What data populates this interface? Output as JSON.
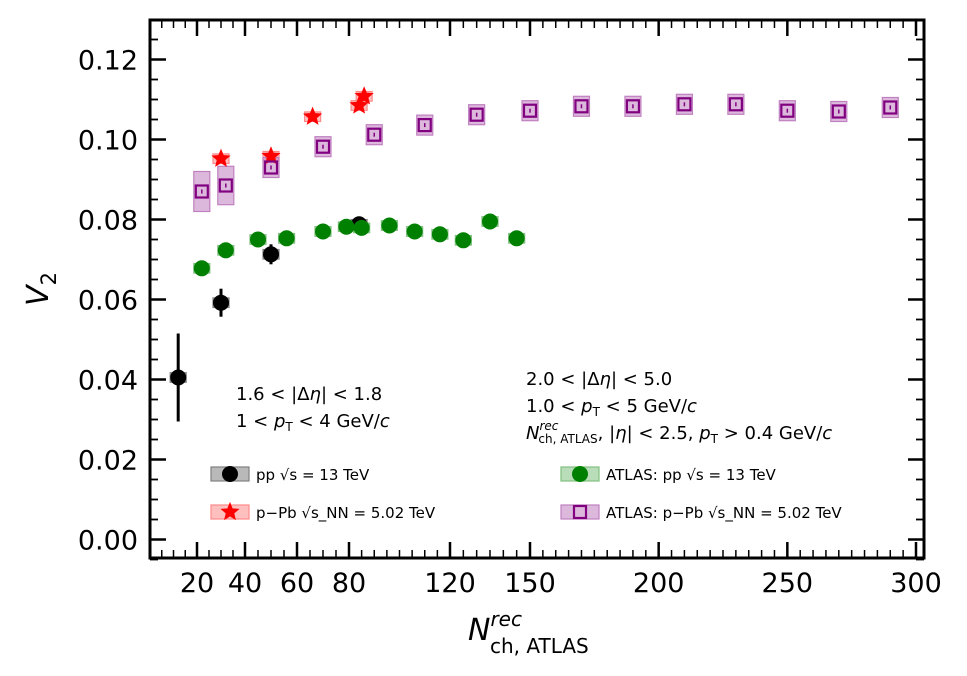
{
  "chart_data": {
    "type": "scatter",
    "xlabel": "N^rec_ch,ATLAS",
    "ylabel": "V_2",
    "xlim": [
      0,
      305
    ],
    "ylim": [
      -0.005,
      0.13
    ],
    "x_scale": "piecewise-compressed below 150",
    "x_ticks": [
      {
        "value": 20,
        "label": "20"
      },
      {
        "value": 40,
        "label": "40"
      },
      {
        "value": 60,
        "label": "60"
      },
      {
        "value": 80,
        "label": "80"
      },
      {
        "value": 120,
        "label": "120"
      },
      {
        "value": 150,
        "label": "150"
      },
      {
        "value": 200,
        "label": "200"
      },
      {
        "value": 250,
        "label": "250"
      },
      {
        "value": 300,
        "label": "300"
      }
    ],
    "y_ticks": [
      {
        "value": 0.0,
        "label": "0.00"
      },
      {
        "value": 0.02,
        "label": "0.02"
      },
      {
        "value": 0.04,
        "label": "0.04"
      },
      {
        "value": 0.06,
        "label": "0.06"
      },
      {
        "value": 0.08,
        "label": "0.08"
      },
      {
        "value": 0.1,
        "label": "0.10"
      },
      {
        "value": 0.12,
        "label": "0.12"
      }
    ],
    "annotations": {
      "left": [
        "1.6 < |Δη| < 1.8",
        "1 < p_T < 4 GeV/c"
      ],
      "right": [
        "2.0 < |Δη| < 5.0",
        "1.0 < p_T < 5 GeV/c",
        "N^rec_ch,ATLAS, |η| < 2.5, p_T > 0.4 GeV/c"
      ]
    },
    "legend_position": "lower center",
    "series": [
      {
        "name": "pp √s = 13 TeV",
        "marker": "filled-circle",
        "color": "#000000",
        "box_color": "#808080",
        "points": [
          {
            "x": 12,
            "y": 0.0405,
            "err": 0.011
          },
          {
            "x": 30,
            "y": 0.0592,
            "err": 0.0035
          },
          {
            "x": 50,
            "y": 0.0713,
            "err": 0.0025
          },
          {
            "x": 84,
            "y": 0.0788,
            "err": 0.001
          }
        ]
      },
      {
        "name": "p−Pb √s_NN = 5.02 TeV",
        "marker": "star",
        "color": "#ff0000",
        "box_color": "#ff8a8a",
        "points": [
          {
            "x": 30,
            "y": 0.0952
          },
          {
            "x": 50,
            "y": 0.0958
          },
          {
            "x": 66,
            "y": 0.1057
          },
          {
            "x": 84,
            "y": 0.1085
          },
          {
            "x": 86,
            "y": 0.1108
          }
        ]
      },
      {
        "name": "ATLAS: pp √s = 13 TeV",
        "marker": "filled-circle",
        "color": "#008000",
        "box_color": "#80c080",
        "points": [
          {
            "x": 22,
            "y": 0.0678
          },
          {
            "x": 32,
            "y": 0.0723
          },
          {
            "x": 45,
            "y": 0.075
          },
          {
            "x": 56,
            "y": 0.0753
          },
          {
            "x": 70,
            "y": 0.077
          },
          {
            "x": 79,
            "y": 0.0782
          },
          {
            "x": 85,
            "y": 0.0779
          },
          {
            "x": 96,
            "y": 0.0785
          },
          {
            "x": 106,
            "y": 0.077
          },
          {
            "x": 116,
            "y": 0.0763
          },
          {
            "x": 125,
            "y": 0.0748
          },
          {
            "x": 135,
            "y": 0.0795
          },
          {
            "x": 145,
            "y": 0.0753
          }
        ]
      },
      {
        "name": "ATLAS: p−Pb √s_NN = 5.02 TeV",
        "marker": "open-square",
        "color": "#800080",
        "box_color": "#c080c0",
        "points": [
          {
            "x": 22,
            "y": 0.087
          },
          {
            "x": 32,
            "y": 0.0885
          },
          {
            "x": 50,
            "y": 0.093
          },
          {
            "x": 70,
            "y": 0.0982
          },
          {
            "x": 90,
            "y": 0.1012
          },
          {
            "x": 110,
            "y": 0.1036
          },
          {
            "x": 130,
            "y": 0.1062
          },
          {
            "x": 150,
            "y": 0.1072
          },
          {
            "x": 170,
            "y": 0.1083
          },
          {
            "x": 190,
            "y": 0.1083
          },
          {
            "x": 210,
            "y": 0.1088
          },
          {
            "x": 230,
            "y": 0.1088
          },
          {
            "x": 250,
            "y": 0.1072
          },
          {
            "x": 270,
            "y": 0.107
          },
          {
            "x": 290,
            "y": 0.108
          }
        ]
      }
    ]
  }
}
